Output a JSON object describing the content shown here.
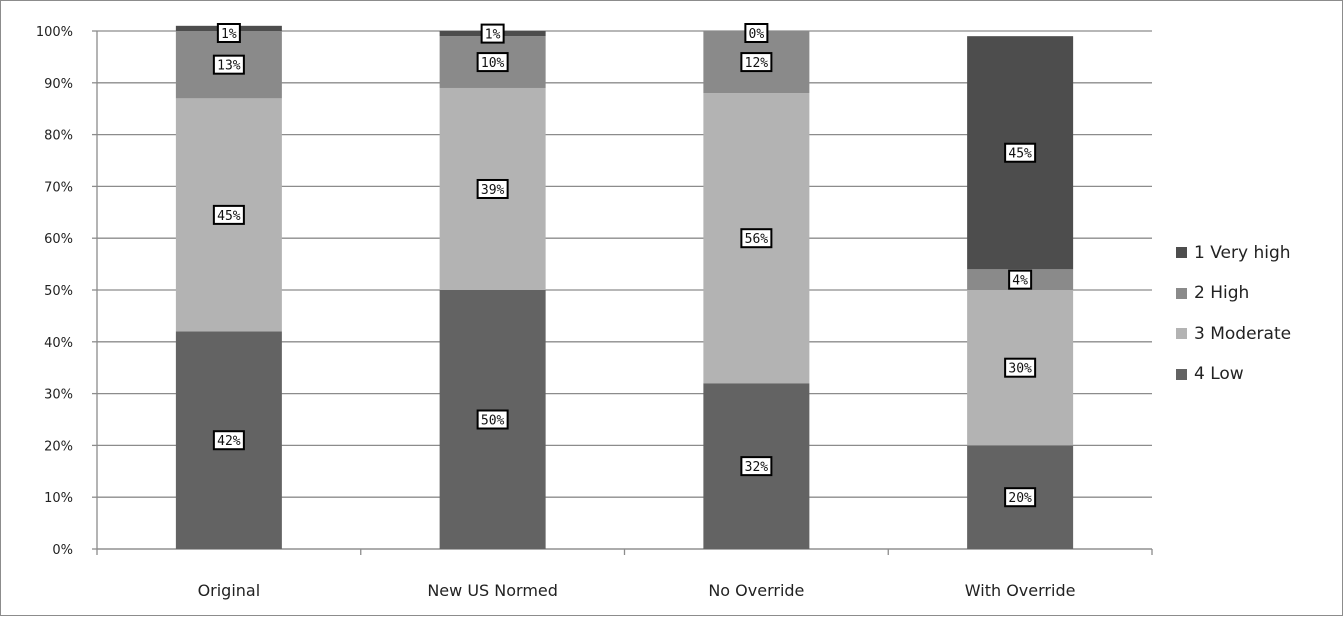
{
  "chart_data": {
    "type": "bar",
    "stacked": true,
    "percent_stacked": true,
    "categories": [
      "Original",
      "New US Normed",
      "No Override",
      "With Override"
    ],
    "series": [
      {
        "name": "4 Low",
        "values": [
          42,
          50,
          32,
          20
        ],
        "labels": [
          "42%",
          "50%",
          "32%",
          "20%"
        ],
        "color": "#636363"
      },
      {
        "name": "3 Moderate",
        "values": [
          45,
          39,
          56,
          30
        ],
        "labels": [
          "45%",
          "39%",
          "56%",
          "30%"
        ],
        "color": "#b3b3b3"
      },
      {
        "name": "2 High",
        "values": [
          13,
          10,
          12,
          4
        ],
        "labels": [
          "13%",
          "10%",
          "12%",
          "4%"
        ],
        "color": "#8a8a8a"
      },
      {
        "name": "1 Very high",
        "values": [
          1,
          1,
          0,
          45
        ],
        "labels": [
          "1%",
          "1%",
          "0%",
          "45%"
        ],
        "color": "#4d4d4d"
      }
    ],
    "y_ticks": [
      "0%",
      "10%",
      "20%",
      "30%",
      "40%",
      "50%",
      "60%",
      "70%",
      "80%",
      "90%",
      "100%"
    ],
    "ylim": [
      0,
      100
    ],
    "grid": true,
    "legend_position": "right",
    "title": "",
    "xlabel": "",
    "ylabel": ""
  }
}
